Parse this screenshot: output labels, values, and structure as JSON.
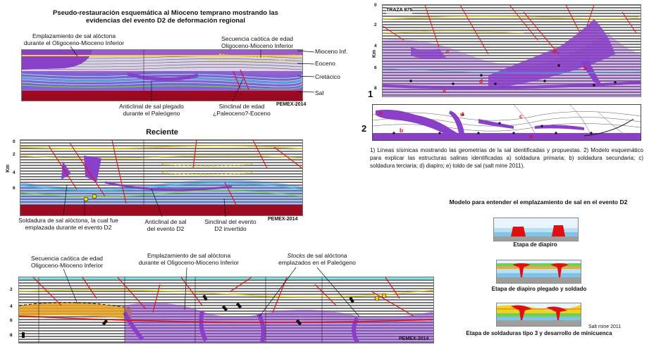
{
  "panel1": {
    "title_line1": "Pseudo-restauración esquemática al Mioceno temprano mostrando las",
    "title_line2": "evidencias del evento D2 de deformación regional",
    "label_emplazamiento_1": "Emplazamiento de sal alóctona",
    "label_emplazamiento_2": "durante el Oligoceno-Mioceno Inferior",
    "label_secuencia_1": "Secuencia caótica de edad",
    "label_secuencia_2": "Oligoceno-Mioceno Inferior",
    "legend_mioceno": "Mioceno Inf.",
    "legend_eoceno": "Eoceno",
    "legend_cretacico": "Cretácico",
    "legend_sal": "Sal",
    "label_anticlinal_1": "Anticlinal de sal plegado",
    "label_anticlinal_2": "durante el Paleógeno",
    "label_sinclinal_1": "Sinclinal de edad",
    "label_sinclinal_2": "¿Paleoceno?-Eoceno",
    "credit": "PEMEX-2014"
  },
  "panel2": {
    "title": "Reciente",
    "km": "Km",
    "depths": [
      "0",
      "2",
      "4",
      "6"
    ],
    "label_soldadura_1": "Soldadura de sal alóctona, la cual fue",
    "label_soldadura_2": "emplazada durante el evento D2",
    "label_anticlinal_1": "Anticlinal de sal",
    "label_anticlinal_2": "del evento D2",
    "label_sinclinal_1": "Sinclinal del evento",
    "label_sinclinal_2": "D2 invertido",
    "credit": "PEMEX-2014"
  },
  "panel3": {
    "label_secuencia_1": "Secuencia caótica de edad",
    "label_secuencia_2": "Oligoceno-Mioceno Inferior",
    "label_emplazamiento_1": "Emplazamiento de sal alóctona",
    "label_emplazamiento_2": "durante el Oligoceno-Mioceno Inferior",
    "label_stocks_italic": "Stocks",
    "label_stocks_1": " de sal alóctona",
    "label_stocks_2": "emplazados en el Paleógeno",
    "depths": [
      "2",
      "4",
      "6",
      "8"
    ],
    "credit": "PEMEX-2014"
  },
  "right_top": {
    "traza": "TRAZA 875",
    "km": "Km",
    "depths": [
      "0",
      "2",
      "4",
      "6",
      "8"
    ],
    "num1": "1",
    "num2": "2",
    "letters_seismic": [
      "c",
      "e",
      "d",
      "b",
      "a"
    ],
    "letters_model": [
      "e",
      "b",
      "d",
      "c",
      "a"
    ],
    "caption": "1) Líneas sísmicas mostrando las geometrías de la sal identificadas y propuestas. 2) Modelo esquemático para explicar las estructuras salinas identificadas a) soldadura primaria; b) soldadura secundaria; c) soldadura terciaria; d) diapiro; e) toldo de sal (salt mine 2011)."
  },
  "right_bottom": {
    "title": "Modelo para entender el emplazamiento de sal en el evento D2",
    "stage1": "Etapa de diapiro",
    "stage2": "Etapa de diapiro plegado y soldado",
    "stage3": "Etapa de soldaduras tipo 3 y desarrollo de minicuenca",
    "credit": "Salt mine 2011"
  },
  "colors": {
    "salt": "#8a3fc8",
    "basement": "#9b0a1e",
    "fault": "#e01010",
    "horizon_yellow": "#f2d21a",
    "chaotic_orange": "#e8a020"
  }
}
